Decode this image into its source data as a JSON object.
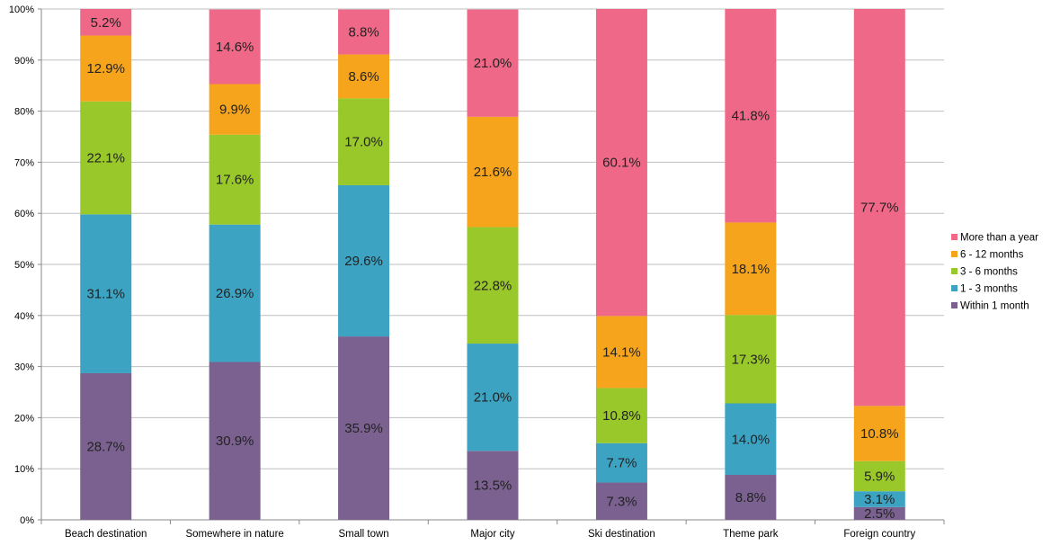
{
  "chart_data": {
    "type": "bar",
    "stacked": true,
    "percent_stacked": true,
    "categories": [
      "Beach destination",
      "Somewhere in nature",
      "Small town",
      "Major city",
      "Ski destination",
      "Theme park",
      "Foreign country"
    ],
    "series": [
      {
        "name": "Within 1 month",
        "color": "#7B6190",
        "values": [
          28.7,
          30.9,
          35.9,
          13.5,
          7.3,
          8.8,
          2.5
        ]
      },
      {
        "name": "1 - 3 months",
        "color": "#3DA3C2",
        "values": [
          31.1,
          26.9,
          29.6,
          21.0,
          7.7,
          14.0,
          3.1
        ]
      },
      {
        "name": "3 - 6 months",
        "color": "#99C82A",
        "values": [
          22.1,
          17.6,
          17.0,
          22.8,
          10.8,
          17.3,
          5.9
        ]
      },
      {
        "name": "6 - 12 months",
        "color": "#F5A41C",
        "values": [
          12.9,
          9.9,
          8.6,
          21.6,
          14.1,
          18.1,
          10.8
        ]
      },
      {
        "name": "More than a year",
        "color": "#F06888",
        "values": [
          5.2,
          14.6,
          8.8,
          21.0,
          60.1,
          41.8,
          77.7
        ]
      }
    ],
    "data_labels": [
      [
        "28.7%",
        "30.9%",
        "35.9%",
        "13.5%",
        "7.3%",
        "8.8%",
        "2.5%"
      ],
      [
        "31.1%",
        "26.9%",
        "29.6%",
        "21.0%",
        "7.7%",
        "14.0%",
        "3.1%"
      ],
      [
        "22.1%",
        "17.6%",
        "17.0%",
        "22.8%",
        "10.8%",
        "17.3%",
        "5.9%"
      ],
      [
        "12.9%",
        "9.9%",
        "8.6%",
        "21.6%",
        "14.1%",
        "18.1%",
        "10.8%"
      ],
      [
        "5.2%",
        "14.6%",
        "8.8%",
        "21.0%",
        "60.1%",
        "41.8%",
        "77.7%"
      ]
    ],
    "y_ticks": [
      "0%",
      "10%",
      "20%",
      "30%",
      "40%",
      "50%",
      "60%",
      "70%",
      "80%",
      "90%",
      "100%"
    ],
    "ylim": [
      0,
      100
    ],
    "grid": true,
    "legend_position": "right",
    "legend_order": [
      "More than a year",
      "6 - 12 months",
      "3 - 6 months",
      "1 - 3 months",
      "Within 1 month"
    ],
    "title": "",
    "xlabel": "",
    "ylabel": ""
  }
}
